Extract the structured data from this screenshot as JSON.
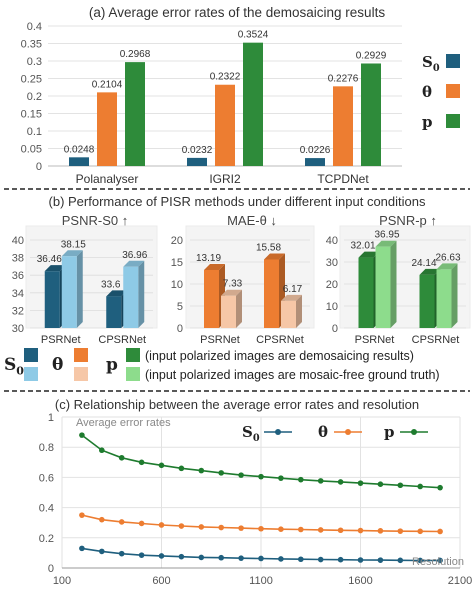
{
  "chart_data": [
    {
      "type": "bar",
      "title": "(a) Average error rates of the demosaicing results",
      "categories": [
        "Polanalyser",
        "IGRI2",
        "TCPDNet"
      ],
      "ylim": [
        0,
        0.4
      ],
      "yticks": [
        "0",
        "0.05",
        "0.1",
        "0.15",
        "0.2",
        "0.25",
        "0.3",
        "0.35",
        "0.4"
      ],
      "grid": true,
      "legend": "right",
      "series": [
        {
          "name": "S0",
          "color": "#1f5f7e",
          "values": [
            0.0248,
            0.0232,
            0.0226
          ],
          "labels": [
            "0.0248",
            "0.0232",
            "0.0226"
          ]
        },
        {
          "name": "θ",
          "color": "#ed7d31",
          "values": [
            0.2104,
            0.2322,
            0.2276
          ],
          "labels": [
            "0.2104",
            "0.2322",
            "0.2276"
          ]
        },
        {
          "name": "p",
          "color": "#2e8b3a",
          "values": [
            0.2968,
            0.3524,
            0.2929
          ],
          "labels": [
            "0.2968",
            "0.3524",
            "0.2929"
          ]
        }
      ]
    },
    {
      "type": "bar",
      "title": "(b) Performance of PISR methods under different input conditions",
      "panels": [
        {
          "title": "PSNR-S0 ↑",
          "ylim": [
            30,
            40
          ],
          "yticks": [
            "30",
            "32",
            "34",
            "36",
            "38",
            "40"
          ],
          "categories": [
            "PSRNet",
            "CPSRNet"
          ],
          "series": [
            {
              "color": "#1f5f7e",
              "values": [
                36.46,
                33.6
              ],
              "labels": [
                "36.46",
                "33.6"
              ]
            },
            {
              "color": "#8ecae6",
              "values": [
                38.15,
                36.96
              ],
              "labels": [
                "38.15",
                "36.96"
              ]
            }
          ]
        },
        {
          "title": "MAE-θ ↓",
          "ylim": [
            0,
            20
          ],
          "yticks": [
            "0",
            "5",
            "10",
            "15",
            "20"
          ],
          "categories": [
            "PSRNet",
            "CPSRNet"
          ],
          "series": [
            {
              "color": "#ed7d31",
              "values": [
                13.19,
                15.58
              ],
              "labels": [
                "13.19",
                "15.58"
              ]
            },
            {
              "color": "#f6c7a7",
              "values": [
                7.33,
                6.17
              ],
              "labels": [
                "7.33",
                "6.17"
              ]
            }
          ]
        },
        {
          "title": "PSNR-p ↑",
          "ylim": [
            0,
            40
          ],
          "yticks": [
            "0",
            "10",
            "20",
            "30",
            "40"
          ],
          "categories": [
            "PSRNet",
            "CPSRNet"
          ],
          "series": [
            {
              "color": "#2e8b3a",
              "values": [
                32.01,
                24.14
              ],
              "labels": [
                "32.01",
                "24.14"
              ]
            },
            {
              "color": "#8ddc8c",
              "values": [
                36.95,
                26.63
              ],
              "labels": [
                "36.95",
                "26.63"
              ]
            }
          ]
        }
      ],
      "legend": {
        "symbols": [
          "S0",
          "θ",
          "p"
        ],
        "rows": [
          "(input polarized images are demosaicing results)",
          "(input polarized images are mosaic-free ground truth)"
        ]
      }
    },
    {
      "type": "line",
      "title": "(c) Relationship between the average error rates and resolution",
      "ylabel": "Average error rates",
      "xlabel": "Resolution",
      "xlim": [
        100,
        2100
      ],
      "ylim": [
        0,
        1
      ],
      "xticks": [
        "100",
        "600",
        "1100",
        "1600",
        "2100"
      ],
      "yticks": [
        "0",
        "0.2",
        "0.4",
        "0.6",
        "0.8",
        "1"
      ],
      "grid": true,
      "legend": "top-right",
      "x": [
        200,
        300,
        400,
        500,
        600,
        700,
        800,
        900,
        1000,
        1100,
        1200,
        1300,
        1400,
        1500,
        1600,
        1700,
        1800,
        1900,
        2000
      ],
      "series": [
        {
          "name": "S0",
          "color": "#1f5f7e",
          "values": [
            0.13,
            0.11,
            0.095,
            0.085,
            0.08,
            0.075,
            0.07,
            0.068,
            0.065,
            0.063,
            0.06,
            0.058,
            0.056,
            0.055,
            0.053,
            0.052,
            0.051,
            0.05,
            0.05
          ]
        },
        {
          "name": "θ",
          "color": "#ed7d31",
          "values": [
            0.35,
            0.32,
            0.305,
            0.295,
            0.285,
            0.278,
            0.272,
            0.268,
            0.264,
            0.26,
            0.257,
            0.255,
            0.252,
            0.25,
            0.248,
            0.246,
            0.244,
            0.243,
            0.242
          ]
        },
        {
          "name": "p",
          "color": "#1e7b2e",
          "values": [
            0.88,
            0.78,
            0.73,
            0.7,
            0.68,
            0.66,
            0.645,
            0.63,
            0.615,
            0.605,
            0.595,
            0.585,
            0.577,
            0.57,
            0.562,
            0.555,
            0.548,
            0.54,
            0.532
          ]
        }
      ]
    }
  ]
}
